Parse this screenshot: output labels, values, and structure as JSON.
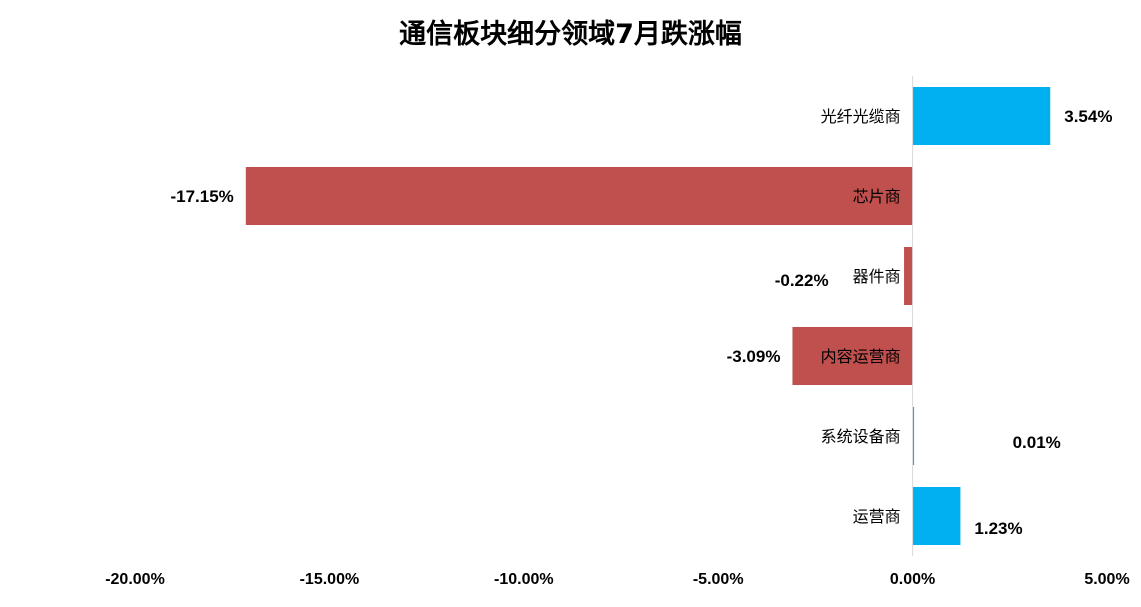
{
  "chart_data": {
    "type": "bar",
    "orientation": "horizontal",
    "title": "通信板块细分领域7月跌涨幅",
    "categories": [
      "光纤光缆商",
      "芯片商",
      "器件商",
      "内容运营商",
      "系统设备商",
      "运营商"
    ],
    "values": [
      3.54,
      -17.15,
      -0.22,
      -3.09,
      0.01,
      1.23
    ],
    "value_labels": [
      "3.54%",
      "-17.15%",
      "-0.22%",
      "-3.09%",
      "0.01%",
      "1.23%"
    ],
    "xlim": [
      -20,
      5
    ],
    "xticks": [
      -20,
      -15,
      -10,
      -5,
      0,
      5
    ],
    "xtick_labels": [
      "-20.00%",
      "-15.00%",
      "-10.00%",
      "-5.00%",
      "0.00%",
      "5.00%"
    ],
    "grid": false,
    "legend": "none",
    "colors": {
      "positive": "#00b0f0",
      "negative": "#c0504d"
    }
  }
}
